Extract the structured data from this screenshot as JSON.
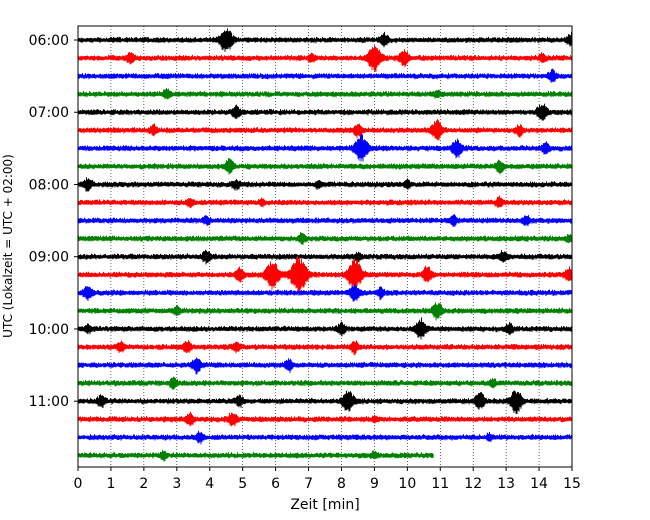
{
  "chart_data": {
    "type": "line",
    "title": "",
    "xlabel": "Zeit  [min]",
    "ylabel": "UTC (Lokalzeit = UTC + 02:00)",
    "xlim": [
      0,
      15
    ],
    "x_ticks": [
      "0",
      "1",
      "2",
      "3",
      "4",
      "5",
      "6",
      "7",
      "8",
      "9",
      "10",
      "11",
      "12",
      "13",
      "14",
      "15"
    ],
    "y_ticks": [
      "06:00",
      "07:00",
      "08:00",
      "09:00",
      "10:00",
      "11:00"
    ],
    "grid": "vertical dotted at each minute",
    "legend": "none",
    "trace_minutes": 15,
    "last_trace_end_min": 10.8,
    "color_cycle": [
      "#000000",
      "#ff0000",
      "#0000ff",
      "#008000"
    ],
    "series": [
      {
        "time": "06:00",
        "color": "black",
        "events": [
          {
            "x": 4.5,
            "amp": 1.3
          },
          {
            "x": 9.3,
            "amp": 0.6
          },
          {
            "x": 15.0,
            "amp": 0.7
          }
        ]
      },
      {
        "time": "06:15",
        "color": "red",
        "events": [
          {
            "x": 1.6,
            "amp": 0.5
          },
          {
            "x": 7.1,
            "amp": 0.4
          },
          {
            "x": 9.0,
            "amp": 1.4
          },
          {
            "x": 9.9,
            "amp": 0.8
          },
          {
            "x": 14.1,
            "amp": 0.4
          }
        ]
      },
      {
        "time": "06:30",
        "color": "blue",
        "events": [
          {
            "x": 14.4,
            "amp": 0.6
          }
        ]
      },
      {
        "time": "06:45",
        "color": "green",
        "events": [
          {
            "x": 2.7,
            "amp": 0.5
          },
          {
            "x": 10.9,
            "amp": 0.3
          }
        ]
      },
      {
        "time": "07:00",
        "color": "black",
        "events": [
          {
            "x": 4.8,
            "amp": 0.6
          },
          {
            "x": 14.1,
            "amp": 0.9
          }
        ]
      },
      {
        "time": "07:15",
        "color": "red",
        "events": [
          {
            "x": 2.3,
            "amp": 0.5
          },
          {
            "x": 8.5,
            "amp": 0.6
          },
          {
            "x": 10.9,
            "amp": 1.0
          },
          {
            "x": 13.4,
            "amp": 0.5
          }
        ]
      },
      {
        "time": "07:30",
        "color": "blue",
        "events": [
          {
            "x": 8.6,
            "amp": 1.4
          },
          {
            "x": 11.5,
            "amp": 0.9
          },
          {
            "x": 14.2,
            "amp": 0.6
          }
        ]
      },
      {
        "time": "07:45",
        "color": "green",
        "events": [
          {
            "x": 4.6,
            "amp": 0.7
          },
          {
            "x": 12.8,
            "amp": 0.6
          }
        ]
      },
      {
        "time": "08:00",
        "color": "black",
        "events": [
          {
            "x": 0.3,
            "amp": 0.6
          },
          {
            "x": 4.8,
            "amp": 0.5
          },
          {
            "x": 7.3,
            "amp": 0.4
          },
          {
            "x": 10.0,
            "amp": 0.4
          }
        ]
      },
      {
        "time": "08:15",
        "color": "red",
        "events": [
          {
            "x": 3.4,
            "amp": 0.4
          },
          {
            "x": 5.6,
            "amp": 0.3
          },
          {
            "x": 12.8,
            "amp": 0.5
          }
        ]
      },
      {
        "time": "08:30",
        "color": "blue",
        "events": [
          {
            "x": 3.9,
            "amp": 0.4
          },
          {
            "x": 11.4,
            "amp": 0.5
          },
          {
            "x": 13.6,
            "amp": 0.5
          }
        ]
      },
      {
        "time": "08:45",
        "color": "green",
        "events": [
          {
            "x": 6.8,
            "amp": 0.5
          },
          {
            "x": 14.9,
            "amp": 0.3
          }
        ]
      },
      {
        "time": "09:00",
        "color": "black",
        "events": [
          {
            "x": 3.9,
            "amp": 0.6
          },
          {
            "x": 8.5,
            "amp": 0.4
          },
          {
            "x": 12.9,
            "amp": 0.5
          }
        ]
      },
      {
        "time": "09:15",
        "color": "red",
        "events": [
          {
            "x": 4.9,
            "amp": 0.7
          },
          {
            "x": 5.9,
            "amp": 1.5
          },
          {
            "x": 6.7,
            "amp": 1.9
          },
          {
            "x": 8.4,
            "amp": 1.6
          },
          {
            "x": 10.6,
            "amp": 0.8
          },
          {
            "x": 14.9,
            "amp": 0.7
          }
        ]
      },
      {
        "time": "09:30",
        "color": "blue",
        "events": [
          {
            "x": 0.3,
            "amp": 0.7
          },
          {
            "x": 8.4,
            "amp": 0.8
          },
          {
            "x": 9.2,
            "amp": 0.5
          }
        ]
      },
      {
        "time": "09:45",
        "color": "green",
        "events": [
          {
            "x": 3.0,
            "amp": 0.4
          },
          {
            "x": 10.9,
            "amp": 0.9
          }
        ]
      },
      {
        "time": "10:00",
        "color": "black",
        "events": [
          {
            "x": 0.3,
            "amp": 0.4
          },
          {
            "x": 8.0,
            "amp": 0.6
          },
          {
            "x": 10.4,
            "amp": 1.0
          },
          {
            "x": 13.1,
            "amp": 0.5
          }
        ]
      },
      {
        "time": "10:15",
        "color": "red",
        "events": [
          {
            "x": 1.3,
            "amp": 0.5
          },
          {
            "x": 3.3,
            "amp": 0.6
          },
          {
            "x": 4.8,
            "amp": 0.5
          },
          {
            "x": 8.4,
            "amp": 0.6
          }
        ]
      },
      {
        "time": "10:30",
        "color": "blue",
        "events": [
          {
            "x": 3.6,
            "amp": 0.8
          },
          {
            "x": 6.4,
            "amp": 0.6
          }
        ]
      },
      {
        "time": "10:45",
        "color": "green",
        "events": [
          {
            "x": 2.9,
            "amp": 0.5
          },
          {
            "x": 12.6,
            "amp": 0.4
          }
        ]
      },
      {
        "time": "11:00",
        "color": "black",
        "events": [
          {
            "x": 0.7,
            "amp": 0.6
          },
          {
            "x": 4.9,
            "amp": 0.5
          },
          {
            "x": 8.2,
            "amp": 1.1
          },
          {
            "x": 12.2,
            "amp": 0.9
          },
          {
            "x": 13.3,
            "amp": 1.2
          }
        ]
      },
      {
        "time": "11:15",
        "color": "red",
        "events": [
          {
            "x": 3.4,
            "amp": 0.6
          },
          {
            "x": 4.7,
            "amp": 0.7
          },
          {
            "x": 9.0,
            "amp": 0.3
          }
        ]
      },
      {
        "time": "11:30",
        "color": "blue",
        "events": [
          {
            "x": 3.7,
            "amp": 0.5
          },
          {
            "x": 12.5,
            "amp": 0.3
          }
        ]
      },
      {
        "time": "11:45",
        "color": "green",
        "events": [
          {
            "x": 2.6,
            "amp": 0.4
          },
          {
            "x": 9.0,
            "amp": 0.3
          }
        ]
      }
    ]
  }
}
